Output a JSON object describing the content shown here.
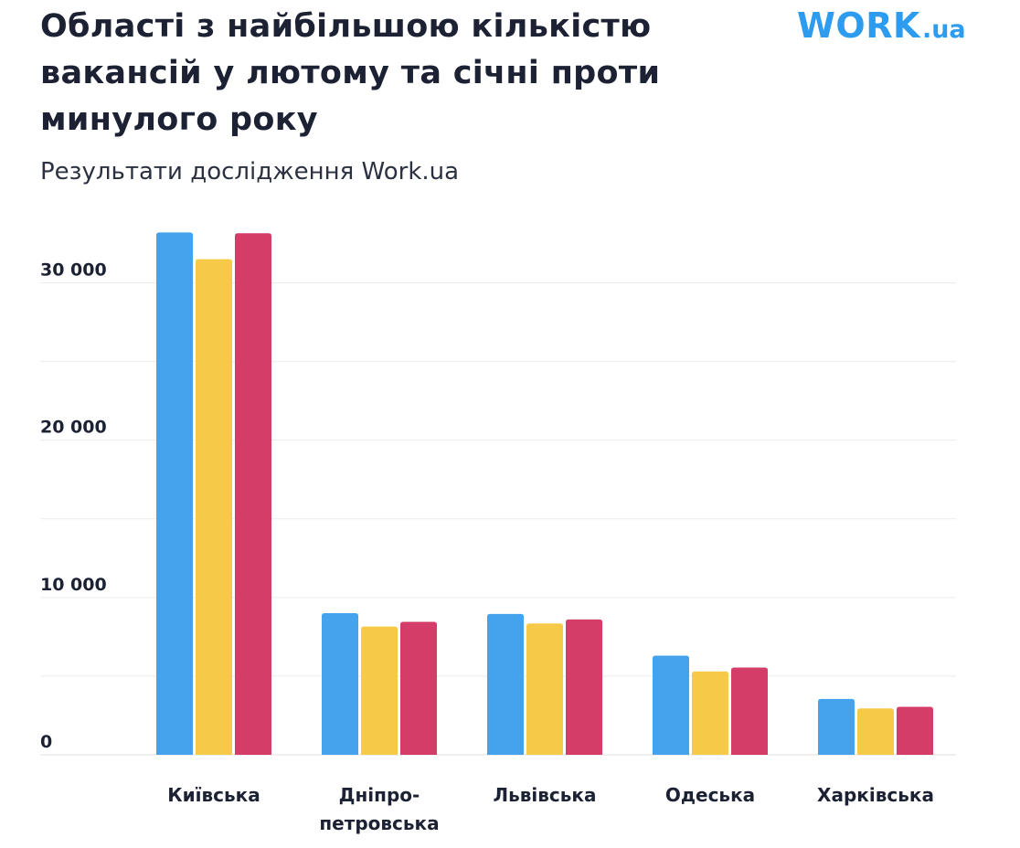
{
  "title": "Області з найбільшою кількістю вакансій у лютому та січні проти минулого року",
  "subtitle": "Результати дослідження Work.ua",
  "logo": {
    "work": "WORK",
    "ua": ".ua"
  },
  "colors": {
    "series1": "#44a3ec",
    "series2": "#f7c948",
    "series3": "#d43d68",
    "grid": "#ebebeb"
  },
  "chart_data": {
    "type": "bar",
    "categories": [
      "Київська",
      "Дніпро-\nпетровська",
      "Львівська",
      "Одеська",
      "Харківська"
    ],
    "series": [
      {
        "values": [
          33200,
          9000,
          8950,
          6300,
          3550
        ]
      },
      {
        "values": [
          31500,
          8150,
          8350,
          5300,
          2950
        ]
      },
      {
        "values": [
          33150,
          8450,
          8600,
          5550,
          3050
        ]
      }
    ],
    "ylim": [
      0,
      34500
    ],
    "yticks": [
      0,
      10000,
      20000,
      30000
    ],
    "ytick_labels": [
      "0",
      "10 000",
      "20 000",
      "30 000"
    ],
    "minor_gridlines": [
      5000,
      15000,
      25000
    ],
    "grid": true,
    "legend": "none"
  }
}
